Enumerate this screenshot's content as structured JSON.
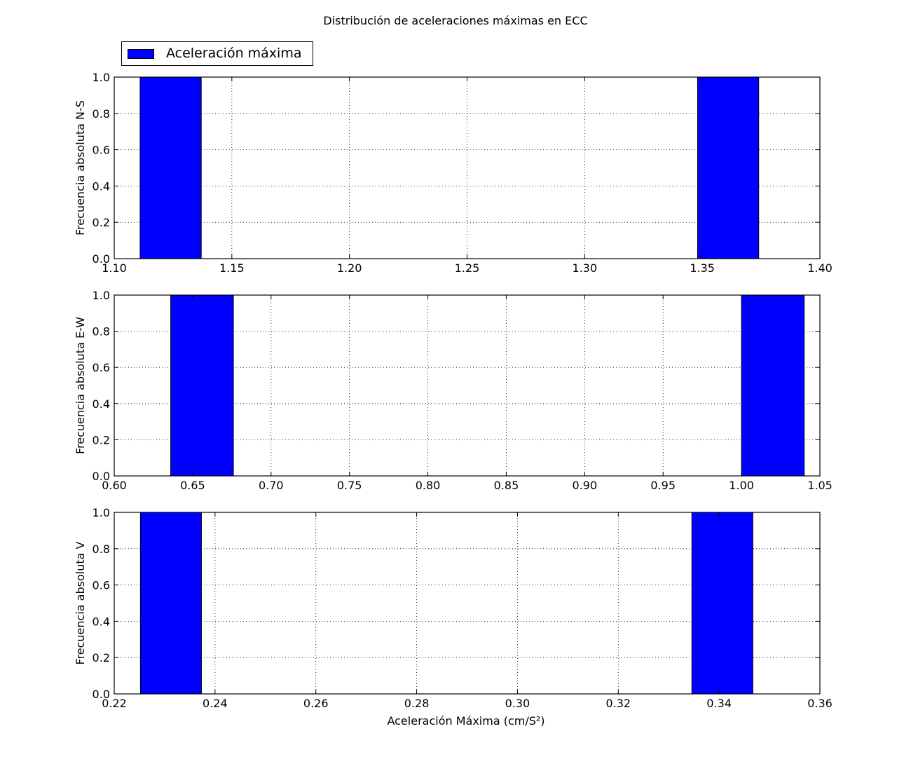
{
  "chart_title": "Distribución de aceleraciones máximas en ECC",
  "legend": {
    "label": "Aceleración máxima",
    "color": "#0000ff",
    "placement": "top-left, above first panel"
  },
  "xlabel": "Aceleración Máxima (cm/S²)",
  "chart_data": [
    {
      "type": "bar",
      "ylabel": "Frecuencia absoluta N-S",
      "xlim": [
        1.1,
        1.4
      ],
      "ylim": [
        0.0,
        1.0
      ],
      "xticks": [
        "1.10",
        "1.15",
        "1.20",
        "1.25",
        "1.30",
        "1.35",
        "1.40"
      ],
      "yticks": [
        "0.0",
        "0.2",
        "0.4",
        "0.6",
        "0.8",
        "1.0"
      ],
      "grid": true,
      "series": [
        {
          "name": "Aceleración máxima",
          "bars": [
            {
              "x0": 1.111,
              "x1": 1.137,
              "value": 1
            },
            {
              "x0": 1.348,
              "x1": 1.374,
              "value": 1
            }
          ]
        }
      ]
    },
    {
      "type": "bar",
      "ylabel": "Frecuencia absoluta E-W",
      "xlim": [
        0.6,
        1.05
      ],
      "ylim": [
        0.0,
        1.0
      ],
      "xticks": [
        "0.60",
        "0.65",
        "0.70",
        "0.75",
        "0.80",
        "0.85",
        "0.90",
        "0.95",
        "1.00",
        "1.05"
      ],
      "yticks": [
        "0.0",
        "0.2",
        "0.4",
        "0.6",
        "0.8",
        "1.0"
      ],
      "grid": true,
      "series": [
        {
          "name": "Aceleración máxima",
          "bars": [
            {
              "x0": 0.636,
              "x1": 0.676,
              "value": 1
            },
            {
              "x0": 1.0,
              "x1": 1.04,
              "value": 1
            }
          ]
        }
      ]
    },
    {
      "type": "bar",
      "ylabel": "Frecuencia absoluta V",
      "xlim": [
        0.22,
        0.36
      ],
      "ylim": [
        0.0,
        1.0
      ],
      "xticks": [
        "0.22",
        "0.24",
        "0.26",
        "0.28",
        "0.30",
        "0.32",
        "0.34",
        "0.36"
      ],
      "yticks": [
        "0.0",
        "0.2",
        "0.4",
        "0.6",
        "0.8",
        "1.0"
      ],
      "grid": true,
      "series": [
        {
          "name": "Aceleración máxima",
          "bars": [
            {
              "x0": 0.2252,
              "x1": 0.2373,
              "value": 1
            },
            {
              "x0": 0.3346,
              "x1": 0.3467,
              "value": 1
            }
          ]
        }
      ]
    }
  ]
}
